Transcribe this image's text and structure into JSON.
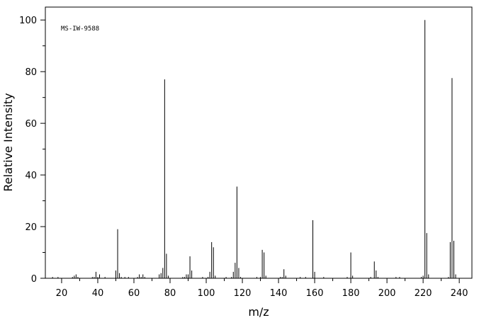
{
  "chart_data": {
    "type": "stem",
    "annotation": "MS-IW-9588",
    "xlabel": "m/z",
    "ylabel": "Relative Intensity",
    "color": "#000000",
    "x": [
      15,
      18,
      26,
      27,
      28,
      29,
      37,
      38,
      39,
      40,
      41,
      44,
      50,
      51,
      52,
      53,
      55,
      57,
      62,
      63,
      64,
      65,
      66,
      74,
      75,
      76,
      77,
      78,
      79,
      87,
      88,
      89,
      90,
      91,
      92,
      98,
      101,
      102,
      103,
      104,
      105,
      111,
      114,
      115,
      116,
      117,
      118,
      119,
      128,
      130,
      131,
      132,
      133,
      141,
      142,
      143,
      144,
      152,
      155,
      159,
      160,
      165,
      178,
      180,
      181,
      191,
      193,
      194,
      195,
      205,
      207,
      219,
      220,
      221,
      222,
      223,
      234,
      235,
      236,
      237,
      238
    ],
    "values": [
      0.5,
      0.5,
      0.5,
      1,
      1.5,
      0.5,
      0.5,
      0.5,
      2.5,
      0.5,
      1.5,
      0.5,
      3,
      19,
      2,
      0.5,
      0.5,
      0.5,
      0.5,
      1.5,
      0.5,
      1.5,
      0.5,
      1.5,
      2,
      4,
      77,
      9.5,
      1,
      0.5,
      0.5,
      1.5,
      1.5,
      8.5,
      3,
      0.5,
      0.5,
      2.5,
      14,
      12,
      1,
      0.5,
      0.5,
      2.5,
      6,
      35.5,
      4,
      0.5,
      0.5,
      0.5,
      11,
      10,
      1,
      0.5,
      0.5,
      3.5,
      1,
      0.5,
      0.5,
      22.5,
      2.5,
      0.5,
      0.5,
      10,
      1,
      0.5,
      6.5,
      3,
      0.5,
      0.5,
      0.5,
      0.5,
      1,
      100,
      17.5,
      1.5,
      0.5,
      14,
      77.5,
      14.5,
      1.5
    ],
    "xlim": [
      11,
      247
    ],
    "ylim": [
      0,
      105
    ],
    "xticks": [
      20,
      40,
      60,
      80,
      100,
      120,
      140,
      160,
      180,
      200,
      220,
      240
    ],
    "xminorticks": [
      10,
      30,
      50,
      70,
      90,
      110,
      130,
      150,
      170,
      190,
      210,
      230
    ],
    "yticks": [
      0,
      20,
      40,
      60,
      80,
      100
    ],
    "yminorticks": [
      10,
      30,
      50,
      70,
      90
    ]
  }
}
